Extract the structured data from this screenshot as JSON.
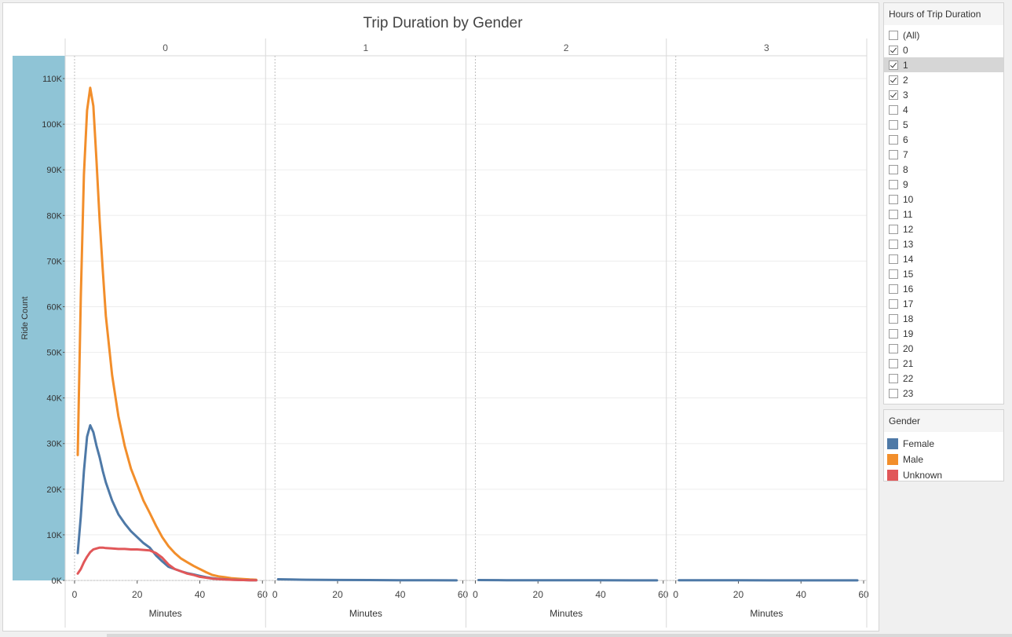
{
  "filter": {
    "title": "Hours of Trip Duration",
    "items": [
      {
        "label": "(All)",
        "checked": false
      },
      {
        "label": "0",
        "checked": true
      },
      {
        "label": "1",
        "checked": true,
        "highlight": true
      },
      {
        "label": "2",
        "checked": true
      },
      {
        "label": "3",
        "checked": true
      },
      {
        "label": "4",
        "checked": false
      },
      {
        "label": "5",
        "checked": false
      },
      {
        "label": "6",
        "checked": false
      },
      {
        "label": "7",
        "checked": false
      },
      {
        "label": "8",
        "checked": false
      },
      {
        "label": "9",
        "checked": false
      },
      {
        "label": "10",
        "checked": false
      },
      {
        "label": "11",
        "checked": false
      },
      {
        "label": "12",
        "checked": false
      },
      {
        "label": "13",
        "checked": false
      },
      {
        "label": "14",
        "checked": false
      },
      {
        "label": "15",
        "checked": false
      },
      {
        "label": "16",
        "checked": false
      },
      {
        "label": "17",
        "checked": false
      },
      {
        "label": "18",
        "checked": false
      },
      {
        "label": "19",
        "checked": false
      },
      {
        "label": "20",
        "checked": false
      },
      {
        "label": "21",
        "checked": false
      },
      {
        "label": "22",
        "checked": false
      },
      {
        "label": "23",
        "checked": false
      }
    ]
  },
  "legend": {
    "title": "Gender",
    "items": [
      {
        "label": "Female",
        "color": "#4e79a7"
      },
      {
        "label": "Male",
        "color": "#f28e2b"
      },
      {
        "label": "Unknown",
        "color": "#e15759"
      }
    ]
  },
  "chart_data": {
    "type": "line",
    "title": "Trip Duration by Gender",
    "ylabel": "Ride Count",
    "xlabel": "Minutes",
    "ylim": [
      0,
      115000
    ],
    "xlim": [
      -3,
      61
    ],
    "y_ticks": [
      0,
      10000,
      20000,
      30000,
      40000,
      50000,
      60000,
      70000,
      80000,
      90000,
      100000,
      110000
    ],
    "y_tick_labels": [
      "0K",
      "10K",
      "20K",
      "30K",
      "40K",
      "50K",
      "60K",
      "70K",
      "80K",
      "90K",
      "100K",
      "110K"
    ],
    "x_ticks": [
      0,
      20,
      40,
      60
    ],
    "x_tick_labels": [
      "0",
      "20",
      "40",
      "60"
    ],
    "grid": true,
    "legend_position": "right",
    "panels": [
      {
        "header": "0",
        "series": [
          {
            "name": "Male",
            "color": "#f28e2b",
            "x": [
              1,
              2,
              3,
              4,
              5,
              6,
              7,
              8,
              9,
              10,
              12,
              14,
              16,
              18,
              20,
              22,
              24,
              26,
              28,
              30,
              32,
              34,
              36,
              38,
              40,
              42,
              44,
              46,
              48,
              50,
              52,
              54,
              56,
              58
            ],
            "y": [
              27500,
              62000,
              89000,
              103000,
              108000,
              104000,
              92000,
              79000,
              68000,
              58000,
              45000,
              36000,
              29500,
              24500,
              21000,
              17500,
              14800,
              12000,
              9500,
              7500,
              6000,
              4800,
              4000,
              3200,
              2500,
              1800,
              1200,
              900,
              700,
              500,
              400,
              300,
              200,
              150
            ]
          },
          {
            "name": "Female",
            "color": "#4e79a7",
            "x": [
              1,
              2,
              3,
              4,
              5,
              6,
              7,
              8,
              9,
              10,
              12,
              14,
              16,
              18,
              20,
              22,
              24,
              26,
              28,
              30,
              32,
              34,
              36,
              38,
              40,
              42,
              44,
              46,
              48,
              50,
              52,
              54,
              56,
              58
            ],
            "y": [
              6000,
              14000,
              24000,
              31500,
              34000,
              32500,
              29500,
              27000,
              24000,
              21500,
              17500,
              14500,
              12500,
              10800,
              9500,
              8200,
              7200,
              5500,
              4200,
              3000,
              2500,
              2000,
              1600,
              1300,
              1000,
              700,
              500,
              350,
              250,
              180,
              120,
              80,
              50,
              30
            ]
          },
          {
            "name": "Unknown",
            "color": "#e15759",
            "x": [
              1,
              2,
              3,
              4,
              5,
              6,
              7,
              8,
              9,
              10,
              12,
              14,
              16,
              18,
              20,
              22,
              24,
              26,
              28,
              30,
              32,
              34,
              36,
              38,
              40,
              42,
              44,
              46,
              48,
              50,
              52,
              54,
              56,
              58
            ],
            "y": [
              1500,
              2500,
              4000,
              5200,
              6200,
              6800,
              7000,
              7200,
              7200,
              7100,
              7000,
              6900,
              6900,
              6800,
              6800,
              6700,
              6600,
              6000,
              5000,
              3500,
              2500,
              2000,
              1500,
              1200,
              800,
              600,
              400,
              300,
              200,
              150,
              100,
              80,
              50,
              30
            ]
          }
        ]
      },
      {
        "header": "1",
        "series": [
          {
            "name": "Female",
            "color": "#4e79a7",
            "x": [
              1,
              5,
              10,
              20,
              30,
              40,
              50,
              58
            ],
            "y": [
              250,
              200,
              160,
              110,
              80,
              50,
              30,
              20
            ]
          }
        ]
      },
      {
        "header": "2",
        "series": [
          {
            "name": "Female",
            "color": "#4e79a7",
            "x": [
              1,
              10,
              20,
              30,
              40,
              50,
              58
            ],
            "y": [
              80,
              60,
              50,
              40,
              30,
              20,
              10
            ]
          }
        ]
      },
      {
        "header": "3",
        "series": [
          {
            "name": "Female",
            "color": "#4e79a7",
            "x": [
              1,
              10,
              20,
              30,
              40,
              50,
              58
            ],
            "y": [
              50,
              40,
              30,
              25,
              20,
              15,
              10
            ]
          }
        ]
      }
    ]
  }
}
